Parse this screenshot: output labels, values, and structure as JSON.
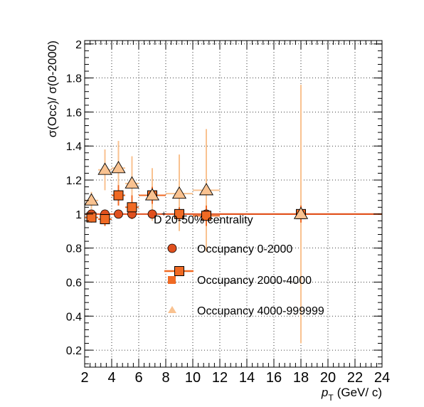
{
  "chart_data": {
    "type": "scatter",
    "title": "",
    "xlabel": "p",
    "xlabel_sub": "T",
    "xlabel_unit": "(GeV/ c)",
    "ylabel": "σ(Occ)/ σ(0-2000)",
    "xlim": [
      2,
      24
    ],
    "ylim": [
      0.1,
      2.02
    ],
    "xticks": [
      2,
      4,
      6,
      8,
      10,
      12,
      14,
      16,
      18,
      20,
      22,
      24
    ],
    "yticks": [
      0.2,
      0.4,
      0.6,
      0.8,
      1,
      1.2,
      1.4,
      1.6,
      1.8,
      2
    ],
    "grid": true,
    "legend_header": "D  20-50% centrality",
    "legend_header_sup": "+",
    "legend_placement": "center",
    "series": [
      {
        "name": "Occupancy 0-2000",
        "color": "#e0501e",
        "marker": "circle",
        "points": [
          {
            "x": 2.5,
            "y": 1.0,
            "xlo": 2,
            "xhi": 3,
            "ylo": 1.0,
            "yhi": 1.0
          },
          {
            "x": 3.5,
            "y": 1.0,
            "xlo": 3,
            "xhi": 4,
            "ylo": 1.0,
            "yhi": 1.0
          },
          {
            "x": 4.5,
            "y": 1.0,
            "xlo": 4,
            "xhi": 5,
            "ylo": 1.0,
            "yhi": 1.0
          },
          {
            "x": 5.5,
            "y": 1.0,
            "xlo": 5,
            "xhi": 6,
            "ylo": 1.0,
            "yhi": 1.0
          },
          {
            "x": 7.0,
            "y": 1.0,
            "xlo": 6,
            "xhi": 8,
            "ylo": 1.0,
            "yhi": 1.0
          },
          {
            "x": 9.0,
            "y": 1.0,
            "xlo": 8,
            "xhi": 10,
            "ylo": 1.0,
            "yhi": 1.0
          },
          {
            "x": 11.0,
            "y": 1.0,
            "xlo": 10,
            "xhi": 12,
            "ylo": 1.0,
            "yhi": 1.0
          },
          {
            "x": 18.0,
            "y": 1.0,
            "xlo": 12,
            "xhi": 24,
            "ylo": 1.0,
            "yhi": 1.0
          }
        ]
      },
      {
        "name": "Occupancy 2000-4000",
        "color": "#f06a24",
        "marker": "square",
        "points": [
          {
            "x": 2.5,
            "y": 0.98,
            "xlo": 2,
            "xhi": 3,
            "ylo": 0.95,
            "yhi": 1.01
          },
          {
            "x": 3.5,
            "y": 0.97,
            "xlo": 3,
            "xhi": 4,
            "ylo": 0.93,
            "yhi": 1.01
          },
          {
            "x": 4.5,
            "y": 1.11,
            "xlo": 4,
            "xhi": 5,
            "ylo": 1.05,
            "yhi": 1.17
          },
          {
            "x": 5.5,
            "y": 1.04,
            "xlo": 5,
            "xhi": 6,
            "ylo": 0.97,
            "yhi": 1.11
          },
          {
            "x": 7.0,
            "y": 1.11,
            "xlo": 6,
            "xhi": 8,
            "ylo": 1.06,
            "yhi": 1.16
          },
          {
            "x": 9.0,
            "y": 1.0,
            "xlo": 8,
            "xhi": 10,
            "ylo": 0.96,
            "yhi": 1.04
          },
          {
            "x": 11.0,
            "y": 0.99,
            "xlo": 10,
            "xhi": 12,
            "ylo": 0.93,
            "yhi": 1.05
          },
          {
            "x": 18.0,
            "y": 1.0,
            "xlo": 12,
            "xhi": 24,
            "ylo": 0.95,
            "yhi": 1.05
          }
        ]
      },
      {
        "name": "Occupancy 4000-999999",
        "color": "#f9c290",
        "marker": "triangle",
        "points": [
          {
            "x": 2.5,
            "y": 1.08,
            "xlo": 2,
            "xhi": 3,
            "ylo": 1.03,
            "yhi": 1.13
          },
          {
            "x": 3.5,
            "y": 1.26,
            "xlo": 3,
            "xhi": 4,
            "ylo": 1.14,
            "yhi": 1.38
          },
          {
            "x": 4.5,
            "y": 1.27,
            "xlo": 4,
            "xhi": 5,
            "ylo": 1.11,
            "yhi": 1.43
          },
          {
            "x": 5.5,
            "y": 1.18,
            "xlo": 5,
            "xhi": 6,
            "ylo": 1.02,
            "yhi": 1.34
          },
          {
            "x": 7.0,
            "y": 1.11,
            "xlo": 6,
            "xhi": 8,
            "ylo": 0.96,
            "yhi": 1.27
          },
          {
            "x": 9.0,
            "y": 1.12,
            "xlo": 8,
            "xhi": 10,
            "ylo": 0.9,
            "yhi": 1.35
          },
          {
            "x": 11.0,
            "y": 1.14,
            "xlo": 10,
            "xhi": 12,
            "ylo": 0.78,
            "yhi": 1.5
          },
          {
            "x": 18.0,
            "y": 1.0,
            "xlo": 12,
            "xhi": 24,
            "ylo": 0.24,
            "yhi": 1.76
          }
        ]
      }
    ]
  }
}
